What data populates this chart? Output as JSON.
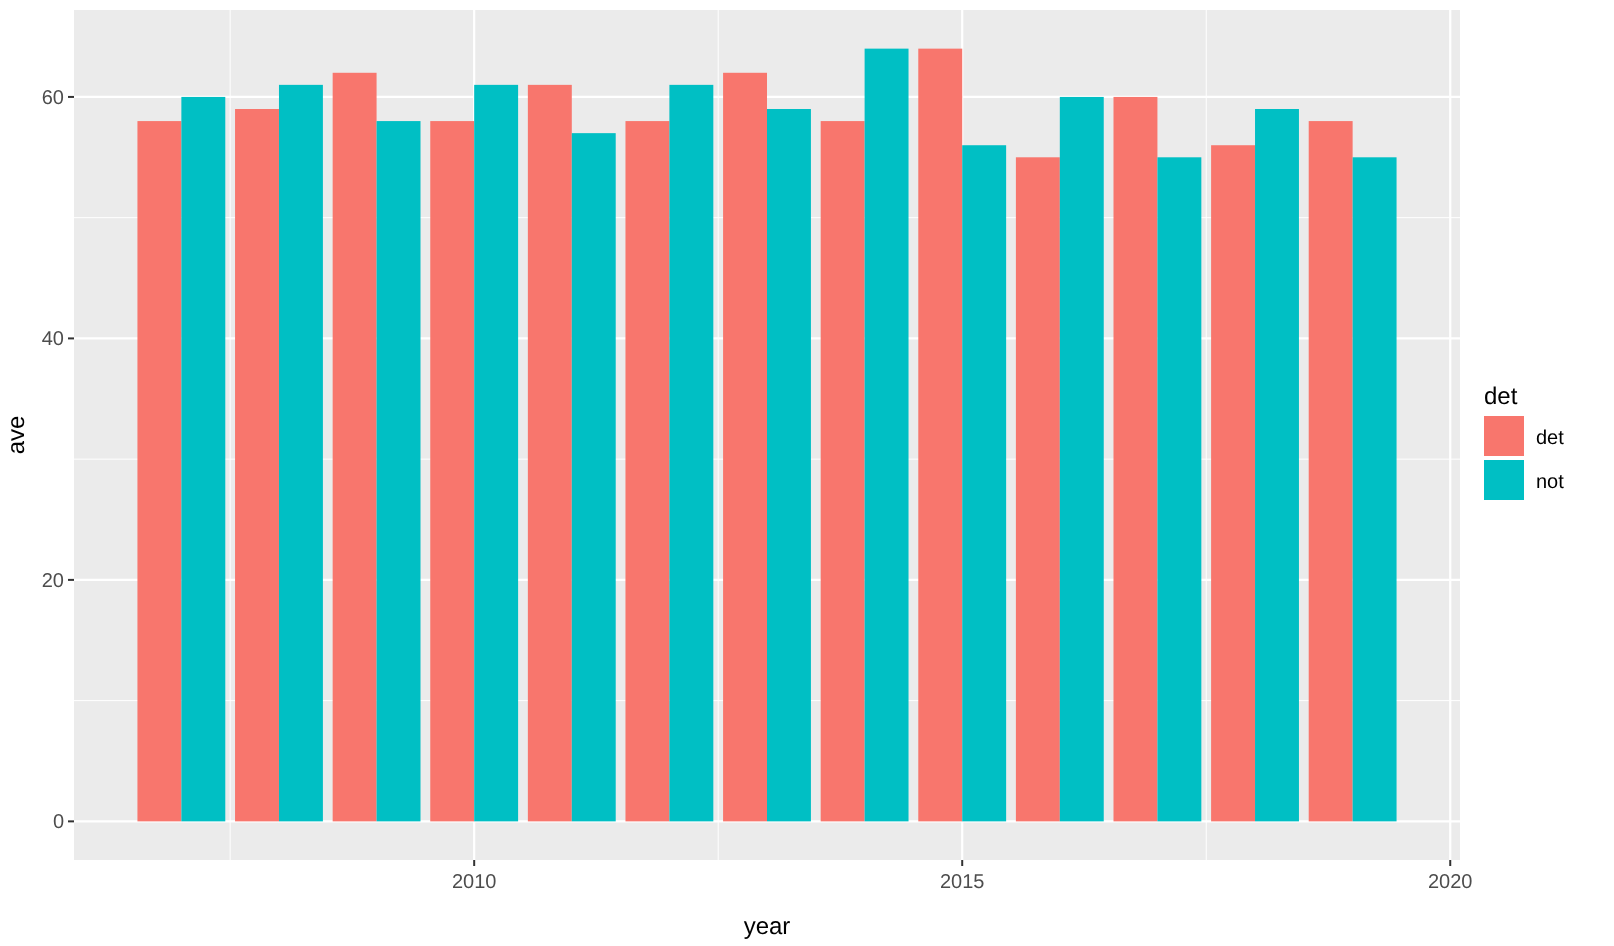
{
  "chart_data": {
    "type": "bar",
    "xlabel": "year",
    "ylabel": "ave",
    "legend_title": "det",
    "x": [
      2007,
      2008,
      2009,
      2010,
      2011,
      2012,
      2013,
      2014,
      2015,
      2016,
      2017,
      2018,
      2019
    ],
    "series": [
      {
        "name": "det",
        "color": "#f8766d",
        "values": [
          58,
          59,
          62,
          58,
          61,
          58,
          62,
          58,
          64,
          55,
          60,
          56,
          58
        ]
      },
      {
        "name": "not",
        "color": "#00bfc4",
        "values": [
          60,
          61,
          58,
          61,
          57,
          61,
          59,
          64,
          56,
          60,
          55,
          59,
          55
        ]
      }
    ],
    "xlim": [
      2005.9,
      2020.1
    ],
    "ylim": [
      -3.2,
      67.2
    ],
    "xticks": [
      2010,
      2015,
      2020
    ],
    "yticks": [
      0,
      20,
      40,
      60
    ],
    "grid": true,
    "legend": "right"
  }
}
